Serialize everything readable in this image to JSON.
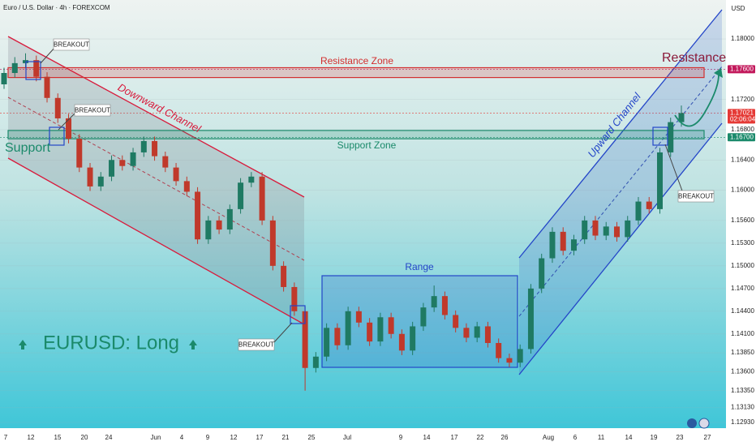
{
  "chart_data": {
    "type": "candlestick",
    "title": "Euro / U.S. Dollar · 4h · FOREXCOM",
    "currency": "USD",
    "ylim": [
      1.12854,
      1.18515
    ],
    "yticks": [
      {
        "value": 1.18,
        "label": "1.18000"
      },
      {
        "value": 1.172,
        "label": "1.17200"
      },
      {
        "value": 1.168,
        "label": "1.16800"
      },
      {
        "value": 1.164,
        "label": "1.16400"
      },
      {
        "value": 1.16,
        "label": "1.16000"
      },
      {
        "value": 1.156,
        "label": "1.15600"
      },
      {
        "value": 1.153,
        "label": "1.15300"
      },
      {
        "value": 1.15,
        "label": "1.15000"
      },
      {
        "value": 1.147,
        "label": "1.14700"
      },
      {
        "value": 1.144,
        "label": "1.14400"
      },
      {
        "value": 1.141,
        "label": "1.14100"
      },
      {
        "value": 1.1385,
        "label": "1.13850"
      },
      {
        "value": 1.136,
        "label": "1.13600"
      },
      {
        "value": 1.1335,
        "label": "1.13350"
      },
      {
        "value": 1.1313,
        "label": "1.13130"
      },
      {
        "value": 1.1293,
        "label": "1.12930"
      }
    ],
    "price_labels": [
      {
        "value": 1.176,
        "label": "1.17600",
        "color": "#c2185b"
      },
      {
        "value": 1.17021,
        "label": "1.17021",
        "timer": "02:06:04",
        "color": "#e53935"
      },
      {
        "value": 1.167,
        "label": "1.16700",
        "color": "#1b8a6b"
      }
    ],
    "categories": [
      "7",
      "12",
      "15",
      "20",
      "24",
      "Jun",
      "4",
      "9",
      "12",
      "17",
      "21",
      "25",
      "Jul",
      "9",
      "14",
      "17",
      "22",
      "26",
      "Aug",
      "6",
      "11",
      "14",
      "19",
      "23",
      "27"
    ],
    "up_color": "#1f7a63",
    "down_color": "#c0392b",
    "ohlc": [
      [
        1.174,
        1.1762,
        1.1734,
        1.1755
      ],
      [
        1.1755,
        1.1776,
        1.1749,
        1.1768
      ],
      [
        1.1768,
        1.1781,
        1.1762,
        1.1772
      ],
      [
        1.1772,
        1.1778,
        1.1744,
        1.175
      ],
      [
        1.175,
        1.1756,
        1.1716,
        1.1722
      ],
      [
        1.1722,
        1.1728,
        1.1689,
        1.1695
      ],
      [
        1.1695,
        1.1701,
        1.1662,
        1.1668
      ],
      [
        1.1668,
        1.1674,
        1.1624,
        1.163
      ],
      [
        1.163,
        1.1636,
        1.1599,
        1.1605
      ],
      [
        1.1605,
        1.1624,
        1.1599,
        1.1618
      ],
      [
        1.1618,
        1.1646,
        1.1612,
        1.164
      ],
      [
        1.164,
        1.1646,
        1.1626,
        1.1632
      ],
      [
        1.1632,
        1.1656,
        1.1626,
        1.165
      ],
      [
        1.165,
        1.1671,
        1.1644,
        1.1665
      ],
      [
        1.1665,
        1.1671,
        1.1639,
        1.1645
      ],
      [
        1.1645,
        1.1651,
        1.1624,
        1.163
      ],
      [
        1.163,
        1.1636,
        1.1606,
        1.1612
      ],
      [
        1.1612,
        1.1618,
        1.1592,
        1.1598
      ],
      [
        1.1598,
        1.1604,
        1.1529,
        1.1535
      ],
      [
        1.1535,
        1.1566,
        1.1529,
        1.156
      ],
      [
        1.156,
        1.1566,
        1.1542,
        1.1548
      ],
      [
        1.1548,
        1.1581,
        1.1542,
        1.1575
      ],
      [
        1.1575,
        1.1616,
        1.1569,
        1.161
      ],
      [
        1.161,
        1.1624,
        1.1604,
        1.1618
      ],
      [
        1.1618,
        1.1624,
        1.1554,
        1.156
      ],
      [
        1.156,
        1.1566,
        1.1494,
        1.15
      ],
      [
        1.15,
        1.1506,
        1.1466,
        1.1472
      ],
      [
        1.1472,
        1.1478,
        1.1434,
        1.144
      ],
      [
        1.144,
        1.1446,
        1.1335,
        1.1365
      ],
      [
        1.1365,
        1.1386,
        1.1359,
        1.138
      ],
      [
        1.138,
        1.1424,
        1.1374,
        1.1418
      ],
      [
        1.1418,
        1.1424,
        1.1389,
        1.1395
      ],
      [
        1.1395,
        1.1446,
        1.1389,
        1.144
      ],
      [
        1.144,
        1.1446,
        1.1419,
        1.1425
      ],
      [
        1.1425,
        1.1431,
        1.1394,
        1.14
      ],
      [
        1.14,
        1.1438,
        1.1394,
        1.1432
      ],
      [
        1.1432,
        1.1438,
        1.1404,
        1.141
      ],
      [
        1.141,
        1.1416,
        1.1382,
        1.1388
      ],
      [
        1.1388,
        1.1426,
        1.1382,
        1.142
      ],
      [
        1.142,
        1.1451,
        1.1414,
        1.1445
      ],
      [
        1.1445,
        1.1474,
        1.1439,
        1.146
      ],
      [
        1.146,
        1.1466,
        1.1429,
        1.1435
      ],
      [
        1.1435,
        1.1441,
        1.1412,
        1.1418
      ],
      [
        1.1418,
        1.1424,
        1.1399,
        1.1405
      ],
      [
        1.1405,
        1.1426,
        1.1399,
        1.142
      ],
      [
        1.142,
        1.1426,
        1.1392,
        1.1398
      ],
      [
        1.1398,
        1.1404,
        1.1372,
        1.1378
      ],
      [
        1.1378,
        1.1384,
        1.1366,
        1.1372
      ],
      [
        1.1372,
        1.1396,
        1.1366,
        1.139
      ],
      [
        1.139,
        1.1476,
        1.1384,
        1.147
      ],
      [
        1.147,
        1.1516,
        1.1464,
        1.151
      ],
      [
        1.151,
        1.1551,
        1.1504,
        1.1545
      ],
      [
        1.1545,
        1.1551,
        1.1514,
        1.152
      ],
      [
        1.152,
        1.1541,
        1.1514,
        1.1535
      ],
      [
        1.1535,
        1.1566,
        1.1529,
        1.156
      ],
      [
        1.156,
        1.1566,
        1.1534,
        1.154
      ],
      [
        1.154,
        1.1558,
        1.1534,
        1.1552
      ],
      [
        1.1552,
        1.1558,
        1.1532,
        1.1538
      ],
      [
        1.1538,
        1.1566,
        1.1532,
        1.156
      ],
      [
        1.156,
        1.1591,
        1.1554,
        1.1585
      ],
      [
        1.1585,
        1.1591,
        1.1569,
        1.1575
      ],
      [
        1.1575,
        1.1656,
        1.1569,
        1.165
      ],
      [
        1.165,
        1.1696,
        1.1644,
        1.169
      ],
      [
        1.169,
        1.1712,
        1.1684,
        1.1702
      ]
    ],
    "zones": {
      "resistance": {
        "label": "Resistance Zone",
        "range": [
          1.1749,
          1.1762
        ],
        "color": "#d32f2f"
      },
      "support": {
        "label": "Support Zone",
        "range": [
          1.1668,
          1.1679
        ],
        "color": "#1b8a6b"
      }
    },
    "annotations": {
      "support": "Support",
      "resistance": "Resistance",
      "downward_channel": "Downward Channel",
      "upward_channel": "Upward Channel",
      "range": "Range",
      "breakout": [
        "BREAKOUT",
        "BREAKOUT",
        "BREAKOUT",
        "BREAKOUT"
      ],
      "signal": "EURUSD: Long"
    }
  }
}
